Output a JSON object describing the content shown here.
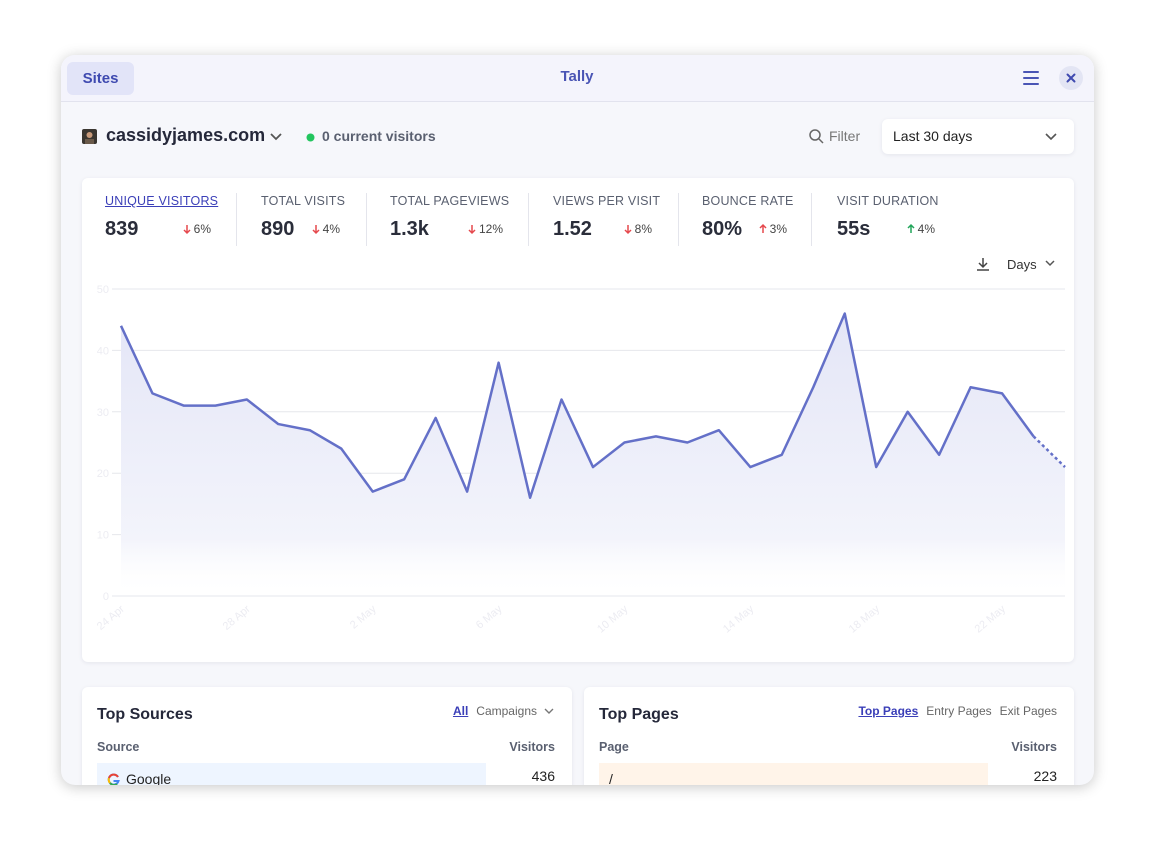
{
  "header": {
    "sites": "Sites",
    "title": "Tally"
  },
  "site": {
    "name": "cassidyjames.com",
    "current_visitors": "0 current visitors",
    "filter": "Filter",
    "range": "Last 30 days"
  },
  "stats": [
    {
      "label": "UNIQUE VISITORS",
      "value": "839",
      "change": "6%",
      "trend": "down",
      "color": "#e5484d",
      "active": true
    },
    {
      "label": "TOTAL VISITS",
      "value": "890",
      "change": "4%",
      "trend": "down",
      "color": "#e5484d",
      "active": false
    },
    {
      "label": "TOTAL PAGEVIEWS",
      "value": "1.3k",
      "change": "12%",
      "trend": "down",
      "color": "#e5484d",
      "active": false
    },
    {
      "label": "VIEWS PER VISIT",
      "value": "1.52",
      "change": "8%",
      "trend": "down",
      "color": "#e5484d",
      "active": false
    },
    {
      "label": "BOUNCE RATE",
      "value": "80%",
      "change": "3%",
      "trend": "up",
      "color": "#e5484d",
      "active": false
    },
    {
      "label": "VISIT DURATION",
      "value": "55s",
      "change": "4%",
      "trend": "up",
      "color": "#22a55a",
      "active": false
    }
  ],
  "interval": "Days",
  "chart_data": {
    "type": "line",
    "categories": [
      "24 Apr",
      null,
      null,
      null,
      "28 Apr",
      null,
      null,
      null,
      "2 May",
      null,
      null,
      null,
      "6 May",
      null,
      null,
      null,
      "10 May",
      null,
      null,
      null,
      "14 May",
      null,
      null,
      null,
      "18 May",
      null,
      null,
      null,
      "22 May",
      null,
      null
    ],
    "series": [
      {
        "name": "Unique visitors",
        "color": "#6470c8",
        "values": [
          44,
          33,
          31,
          31,
          32,
          28,
          27,
          24,
          17,
          19,
          29,
          17,
          38,
          16,
          32,
          21,
          25,
          26,
          25,
          27,
          21,
          23,
          34,
          46,
          21,
          30,
          23,
          34,
          33,
          26,
          21
        ]
      }
    ],
    "ylim": [
      0,
      50
    ],
    "yticks": [
      0,
      10,
      20,
      30,
      40,
      50
    ],
    "grid": true
  },
  "top_sources": {
    "title": "Top Sources",
    "tabs": [
      "All",
      "Campaigns"
    ],
    "active_tab": 0,
    "columns": [
      "Source",
      "Visitors"
    ],
    "rows": [
      [
        "Google",
        "436"
      ]
    ]
  },
  "top_pages": {
    "title": "Top Pages",
    "tabs": [
      "Top Pages",
      "Entry Pages",
      "Exit Pages"
    ],
    "active_tab": 0,
    "columns": [
      "Page",
      "Visitors"
    ],
    "rows": [
      [
        "/",
        "223"
      ]
    ]
  }
}
